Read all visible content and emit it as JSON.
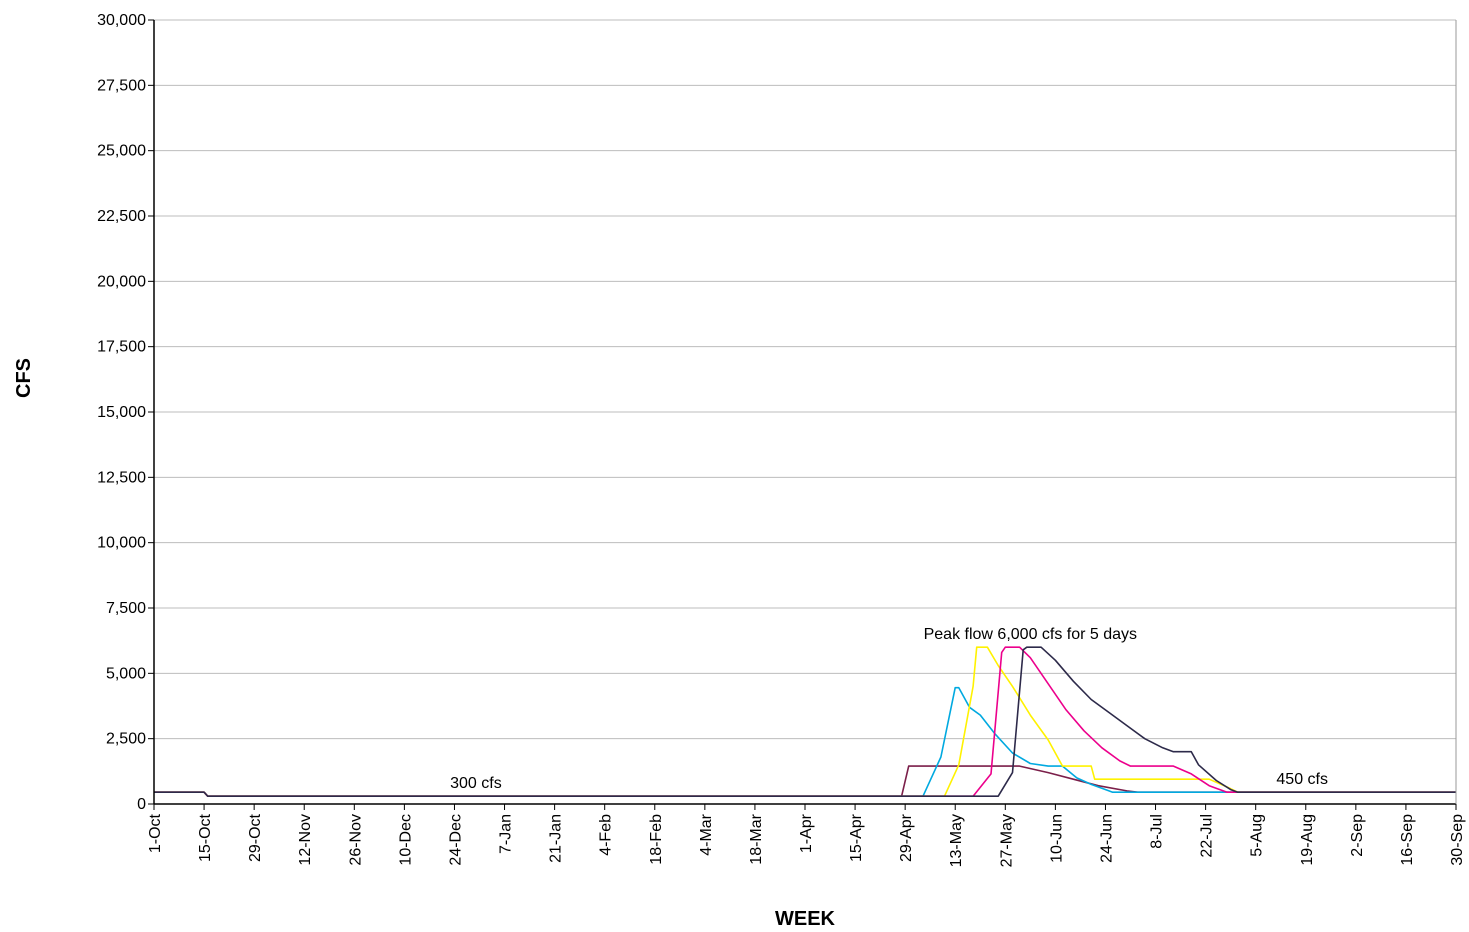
{
  "chart_data": {
    "type": "line",
    "title": "",
    "xlabel": "WEEK",
    "ylabel": "CFS",
    "ylim": [
      0,
      30000
    ],
    "yticks": [
      "0",
      "2,500",
      "5,000",
      "7,500",
      "10,000",
      "12,500",
      "15,000",
      "17,500",
      "20,000",
      "22,500",
      "25,000",
      "27,500",
      "30,000"
    ],
    "x_tick_labels": [
      "1-Oct",
      "15-Oct",
      "29-Oct",
      "12-Nov",
      "26-Nov",
      "10-Dec",
      "24-Dec",
      "7-Jan",
      "21-Jan",
      "4-Feb",
      "18-Feb",
      "4-Mar",
      "18-Mar",
      "1-Apr",
      "15-Apr",
      "29-Apr",
      "13-May",
      "27-May",
      "10-Jun",
      "24-Jun",
      "8-Jul",
      "22-Jul",
      "5-Aug",
      "19-Aug",
      "2-Sep",
      "16-Sep",
      "30-Sep"
    ],
    "grid": "horizontal",
    "legend": "none",
    "annotations": [
      {
        "text": "300 cfs",
        "x": 90,
        "y": 300
      },
      {
        "text": "Peak flow 6,000 cfs for 5 days",
        "x": 245,
        "y": 6000
      },
      {
        "text": "450 cfs",
        "x": 321,
        "y": 450
      }
    ],
    "series": [
      {
        "color": "#7b1f4a",
        "points": [
          [
            0,
            450
          ],
          [
            14,
            450
          ],
          [
            15,
            300
          ],
          [
            209,
            300
          ],
          [
            211,
            1450
          ],
          [
            242,
            1450
          ],
          [
            250,
            1200
          ],
          [
            257,
            950
          ],
          [
            264,
            700
          ],
          [
            272,
            500
          ],
          [
            275,
            450
          ],
          [
            364,
            450
          ]
        ]
      },
      {
        "color": "#00a9e0",
        "points": [
          [
            0,
            450
          ],
          [
            14,
            450
          ],
          [
            15,
            300
          ],
          [
            215,
            300
          ],
          [
            220,
            1800
          ],
          [
            224,
            4450
          ],
          [
            225,
            4450
          ],
          [
            228,
            3700
          ],
          [
            231,
            3400
          ],
          [
            235,
            2700
          ],
          [
            240,
            1950
          ],
          [
            245,
            1550
          ],
          [
            250,
            1450
          ],
          [
            254,
            1450
          ],
          [
            258,
            1000
          ],
          [
            262,
            750
          ],
          [
            267,
            500
          ],
          [
            268,
            450
          ],
          [
            364,
            450
          ]
        ]
      },
      {
        "color": "#fff200",
        "points": [
          [
            0,
            450
          ],
          [
            14,
            450
          ],
          [
            15,
            300
          ],
          [
            221,
            300
          ],
          [
            225,
            1500
          ],
          [
            229,
            4500
          ],
          [
            230,
            6000
          ],
          [
            233,
            6000
          ],
          [
            236,
            5300
          ],
          [
            240,
            4500
          ],
          [
            245,
            3400
          ],
          [
            250,
            2450
          ],
          [
            254,
            1450
          ],
          [
            262,
            1450
          ],
          [
            263,
            950
          ],
          [
            281,
            950
          ],
          [
            295,
            950
          ],
          [
            300,
            650
          ],
          [
            303,
            450
          ],
          [
            364,
            450
          ]
        ]
      },
      {
        "color": "#ec008c",
        "points": [
          [
            0,
            450
          ],
          [
            14,
            450
          ],
          [
            15,
            300
          ],
          [
            229,
            300
          ],
          [
            234,
            1150
          ],
          [
            237,
            5800
          ],
          [
            238,
            6000
          ],
          [
            242,
            6000
          ],
          [
            245,
            5600
          ],
          [
            250,
            4600
          ],
          [
            255,
            3600
          ],
          [
            260,
            2800
          ],
          [
            265,
            2150
          ],
          [
            270,
            1650
          ],
          [
            273,
            1450
          ],
          [
            285,
            1450
          ],
          [
            290,
            1150
          ],
          [
            295,
            700
          ],
          [
            300,
            450
          ],
          [
            364,
            450
          ]
        ]
      },
      {
        "color": "#2d2a4a",
        "points": [
          [
            0,
            450
          ],
          [
            14,
            450
          ],
          [
            15,
            300
          ],
          [
            236,
            300
          ],
          [
            240,
            1200
          ],
          [
            243,
            5900
          ],
          [
            244,
            6000
          ],
          [
            248,
            6000
          ],
          [
            252,
            5500
          ],
          [
            257,
            4700
          ],
          [
            262,
            4000
          ],
          [
            267,
            3500
          ],
          [
            272,
            3000
          ],
          [
            277,
            2500
          ],
          [
            282,
            2150
          ],
          [
            285,
            2000
          ],
          [
            290,
            2000
          ],
          [
            292,
            1500
          ],
          [
            297,
            900
          ],
          [
            301,
            550
          ],
          [
            303,
            450
          ],
          [
            364,
            450
          ]
        ]
      }
    ]
  }
}
